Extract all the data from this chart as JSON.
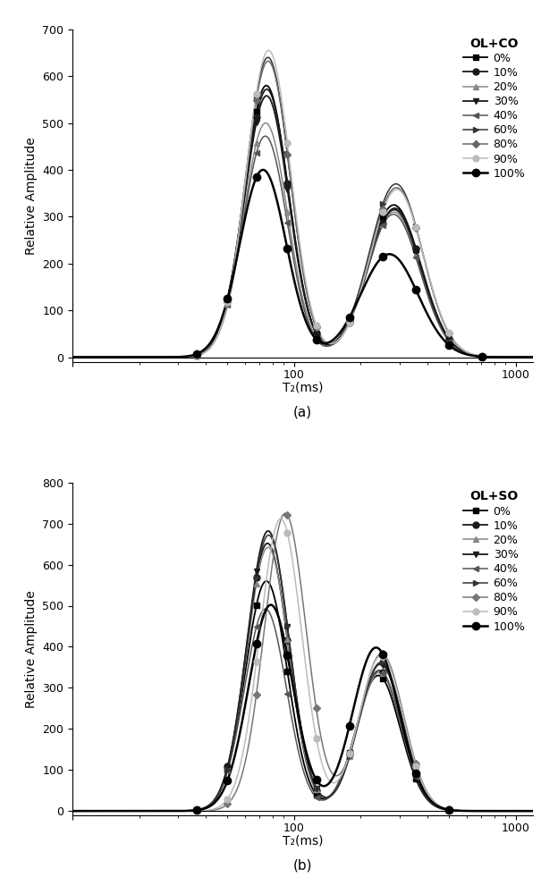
{
  "panel_a": {
    "title": "OL+CO",
    "ylabel": "Relative Amplitude",
    "xlabel": "T₂(ms)",
    "label": "(a)",
    "ylim": [
      -10,
      700
    ],
    "yticks": [
      0,
      100,
      200,
      300,
      400,
      500,
      600,
      700
    ],
    "series": [
      {
        "label": "0%",
        "color": "#000000",
        "lw": 1.3,
        "marker": "s",
        "ms": 5,
        "p1_amp": 580,
        "p1_mu": 1.875,
        "p1_sig": 0.1,
        "p2_amp": 325,
        "p2_mu": 2.45,
        "p2_sig": 0.12
      },
      {
        "label": "10%",
        "color": "#1a1a1a",
        "lw": 1.3,
        "marker": "o",
        "ms": 5,
        "p1_amp": 572,
        "p1_mu": 1.877,
        "p1_sig": 0.1,
        "p2_amp": 318,
        "p2_mu": 2.455,
        "p2_sig": 0.12
      },
      {
        "label": "20%",
        "color": "#888888",
        "lw": 1.1,
        "marker": "^",
        "ms": 5,
        "p1_amp": 500,
        "p1_mu": 1.872,
        "p1_sig": 0.1,
        "p2_amp": 310,
        "p2_mu": 2.45,
        "p2_sig": 0.12
      },
      {
        "label": "30%",
        "color": "#1a1a1a",
        "lw": 1.3,
        "marker": "v",
        "ms": 5,
        "p1_amp": 558,
        "p1_mu": 1.876,
        "p1_sig": 0.1,
        "p2_amp": 315,
        "p2_mu": 2.452,
        "p2_sig": 0.12
      },
      {
        "label": "40%",
        "color": "#555555",
        "lw": 1.1,
        "marker": "<",
        "ms": 5,
        "p1_amp": 472,
        "p1_mu": 1.87,
        "p1_sig": 0.1,
        "p2_amp": 305,
        "p2_mu": 2.448,
        "p2_sig": 0.12
      },
      {
        "label": "60%",
        "color": "#333333",
        "lw": 1.1,
        "marker": ">",
        "ms": 5,
        "p1_amp": 640,
        "p1_mu": 1.882,
        "p1_sig": 0.1,
        "p2_amp": 370,
        "p2_mu": 2.46,
        "p2_sig": 0.12
      },
      {
        "label": "80%",
        "color": "#666666",
        "lw": 1.1,
        "marker": "D",
        "ms": 4,
        "p1_amp": 632,
        "p1_mu": 1.883,
        "p1_sig": 0.1,
        "p2_amp": 362,
        "p2_mu": 2.462,
        "p2_sig": 0.12
      },
      {
        "label": "90%",
        "color": "#bbbbbb",
        "lw": 1.1,
        "marker": "o",
        "ms": 5,
        "p1_amp": 655,
        "p1_mu": 1.885,
        "p1_sig": 0.1,
        "p2_amp": 358,
        "p2_mu": 2.464,
        "p2_sig": 0.12
      },
      {
        "label": "100%",
        "color": "#000000",
        "lw": 1.8,
        "marker": "o",
        "ms": 6,
        "p1_amp": 400,
        "p1_mu": 1.86,
        "p1_sig": 0.105,
        "p2_amp": 220,
        "p2_mu": 2.43,
        "p2_sig": 0.13
      }
    ]
  },
  "panel_b": {
    "title": "OL+SO",
    "ylabel": "Relative Amplitude",
    "xlabel": "T₂(ms)",
    "label": "(b)",
    "ylim": [
      -10,
      800
    ],
    "yticks": [
      0,
      100,
      200,
      300,
      400,
      500,
      600,
      700,
      800
    ],
    "series": [
      {
        "label": "0%",
        "color": "#000000",
        "lw": 1.3,
        "marker": "s",
        "ms": 5,
        "p1_amp": 560,
        "p1_mu": 1.875,
        "p1_sig": 0.095,
        "p2_amp": 330,
        "p2_mu": 2.38,
        "p2_sig": 0.1
      },
      {
        "label": "10%",
        "color": "#1a1a1a",
        "lw": 1.3,
        "marker": "o",
        "ms": 5,
        "p1_amp": 652,
        "p1_mu": 1.88,
        "p1_sig": 0.095,
        "p2_amp": 342,
        "p2_mu": 2.385,
        "p2_sig": 0.1
      },
      {
        "label": "20%",
        "color": "#888888",
        "lw": 1.1,
        "marker": "^",
        "ms": 5,
        "p1_amp": 642,
        "p1_mu": 1.882,
        "p1_sig": 0.095,
        "p2_amp": 338,
        "p2_mu": 2.387,
        "p2_sig": 0.1
      },
      {
        "label": "30%",
        "color": "#1a1a1a",
        "lw": 1.3,
        "marker": "v",
        "ms": 5,
        "p1_amp": 682,
        "p1_mu": 1.883,
        "p1_sig": 0.095,
        "p2_amp": 358,
        "p2_mu": 2.39,
        "p2_sig": 0.1
      },
      {
        "label": "40%",
        "color": "#555555",
        "lw": 1.1,
        "marker": "<",
        "ms": 5,
        "p1_amp": 492,
        "p1_mu": 1.871,
        "p1_sig": 0.095,
        "p2_amp": 342,
        "p2_mu": 2.382,
        "p2_sig": 0.1
      },
      {
        "label": "60%",
        "color": "#333333",
        "lw": 1.1,
        "marker": ">",
        "ms": 5,
        "p1_amp": 672,
        "p1_mu": 1.885,
        "p1_sig": 0.095,
        "p2_amp": 362,
        "p2_mu": 2.392,
        "p2_sig": 0.1
      },
      {
        "label": "80%",
        "color": "#777777",
        "lw": 1.1,
        "marker": "D",
        "ms": 4,
        "p1_amp": 725,
        "p1_mu": 1.96,
        "p1_sig": 0.095,
        "p2_amp": 383,
        "p2_mu": 2.395,
        "p2_sig": 0.1
      },
      {
        "label": "90%",
        "color": "#bbbbbb",
        "lw": 1.1,
        "marker": "o",
        "ms": 5,
        "p1_amp": 712,
        "p1_mu": 1.94,
        "p1_sig": 0.095,
        "p2_amp": 378,
        "p2_mu": 2.393,
        "p2_sig": 0.1
      },
      {
        "label": "100%",
        "color": "#000000",
        "lw": 1.8,
        "marker": "o",
        "ms": 6,
        "p1_amp": 502,
        "p1_mu": 1.895,
        "p1_sig": 0.1,
        "p2_amp": 398,
        "p2_mu": 2.37,
        "p2_sig": 0.105
      }
    ]
  },
  "xlim": [
    10,
    1200
  ],
  "xtick_vals": [
    100,
    1000
  ],
  "marker_x_log": [
    1.08,
    1.18,
    1.3,
    1.43,
    1.56,
    1.7,
    1.83,
    1.97,
    2.1,
    2.25,
    2.4,
    2.55,
    2.7,
    2.85,
    3.0
  ]
}
